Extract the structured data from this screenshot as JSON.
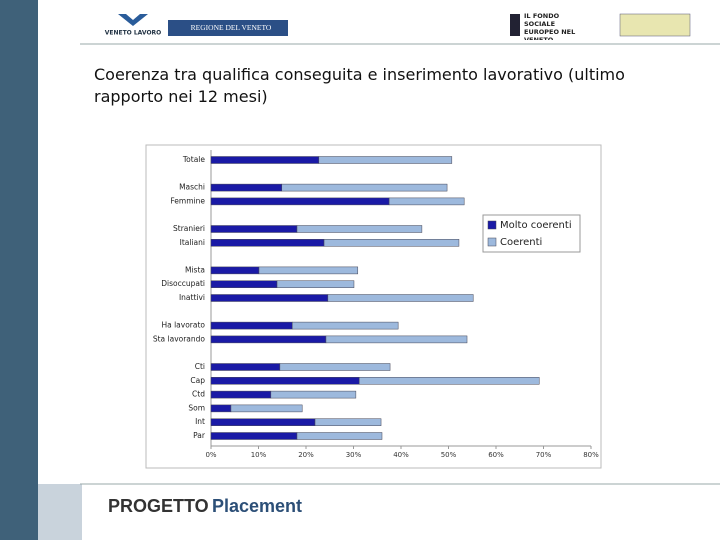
{
  "header": {
    "logo_left": "VENETO LAVORO",
    "logo_region": "REGIONE DEL VENETO",
    "logo_fse": "IL FONDO SOCIALE EUROPEO NEL VENETO"
  },
  "footer": {
    "word1": "PROGETTO",
    "word2": "Placement"
  },
  "chart_data": {
    "type": "stacked-barh",
    "title": "Coerenza tra qualifica conseguita e inserimento lavorativo (ultimo rapporto nei 12 mesi)",
    "categories": [
      "Totale",
      null,
      "Maschi",
      "Femmine",
      null,
      "Stranieri",
      "Italiani",
      null,
      "Mista",
      "Disoccupati",
      "Inattivi",
      null,
      "Ha lavorato",
      "Sta lavorando",
      null,
      "Cti",
      "Cap",
      "Ctd",
      "Som",
      "Int",
      "Par"
    ],
    "series": [
      {
        "name": "Molto coerenti",
        "color": "#1a1aa6",
        "values": [
          22.7,
          null,
          14.9,
          37.5,
          null,
          18.1,
          23.8,
          null,
          10.1,
          13.9,
          24.6,
          null,
          17.1,
          24.2,
          null,
          14.5,
          31.2,
          12.6,
          4.2,
          21.9,
          18.1
        ]
      },
      {
        "name": "Coerenti",
        "color": "#9db9dd",
        "values": [
          28.0,
          null,
          34.8,
          15.8,
          null,
          26.3,
          28.4,
          null,
          20.8,
          16.2,
          30.6,
          null,
          22.3,
          29.7,
          null,
          23.2,
          37.9,
          17.9,
          15.0,
          13.9,
          17.9
        ]
      }
    ],
    "xlim": [
      0,
      80
    ],
    "xticks": [
      {
        "value": 0,
        "label": "0%"
      },
      {
        "value": 10,
        "label": "10%"
      },
      {
        "value": 20,
        "label": "20%"
      },
      {
        "value": 30,
        "label": "30%"
      },
      {
        "value": 40,
        "label": "40%"
      },
      {
        "value": 50,
        "label": "50%"
      },
      {
        "value": 60,
        "label": "60%"
      },
      {
        "value": 70,
        "label": "70%"
      },
      {
        "value": 80,
        "label": "80%"
      }
    ],
    "legend": "right"
  }
}
